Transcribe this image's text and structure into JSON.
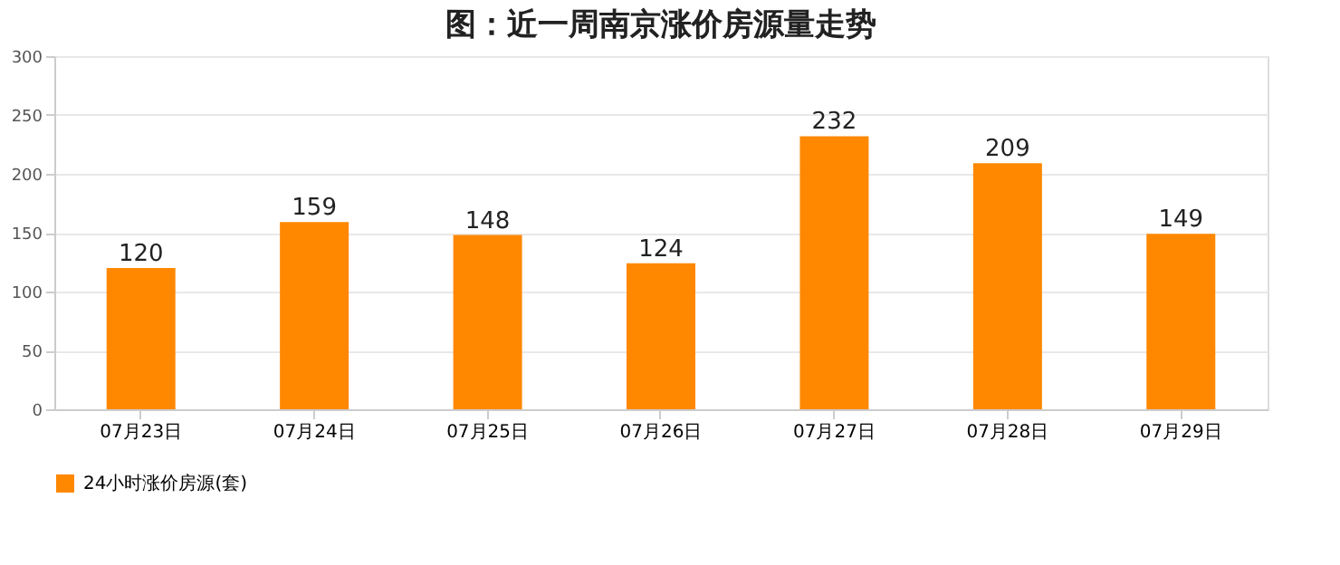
{
  "chart_data": {
    "type": "bar",
    "title": "图：近一周南京涨价房源量走势",
    "categories": [
      "07月23日",
      "07月24日",
      "07月25日",
      "07月26日",
      "07月27日",
      "07月28日",
      "07月29日"
    ],
    "series": [
      {
        "name": "24小时涨价房源(套)",
        "color": "#ff8800",
        "values": [
          120,
          159,
          148,
          124,
          232,
          209,
          149
        ]
      }
    ],
    "ylim": [
      0,
      300
    ],
    "yticks": [
      0,
      50,
      100,
      150,
      200,
      250,
      300
    ],
    "grid": "y",
    "legend": "bottom",
    "data_labels": true
  }
}
